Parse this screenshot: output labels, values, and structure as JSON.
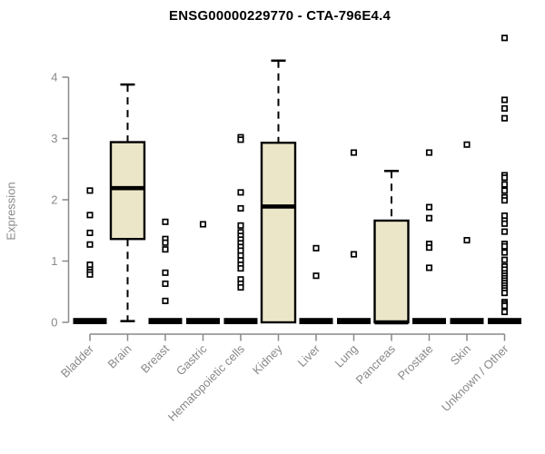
{
  "page": {
    "background": "#ffffff"
  },
  "chart_data": {
    "type": "boxplot",
    "title": "ENSG00000229770 - CTA-796E4.4",
    "ylabel": "Expression",
    "xlabel": "",
    "ylim": [
      0,
      4.7
    ],
    "yticks": [
      0,
      1,
      2,
      3,
      4
    ],
    "grid": false,
    "legend": "none",
    "colors": {
      "box_fill": "#ece6c9",
      "box_stroke": "#000000",
      "median": "#000000",
      "axis": "#898989",
      "outlier_fill": "#ffffff",
      "outlier_stroke": "#000000"
    },
    "categories": [
      "Bladder",
      "Brain",
      "Breast",
      "Gastric",
      "Hematopoietic cells",
      "Kidney",
      "Liver",
      "Lung",
      "Pancreas",
      "Prostate",
      "Skin",
      "Unknown / Other"
    ],
    "boxes": [
      {
        "label": "Bladder",
        "q1": 0,
        "median": 0,
        "q3": 0,
        "whisker_low": 0,
        "whisker_high": 0,
        "outliers": [
          2.15,
          1.75,
          1.46,
          1.27,
          0.94,
          0.86,
          0.82,
          0.78
        ]
      },
      {
        "label": "Brain",
        "q1": 1.36,
        "median": 2.19,
        "q3": 2.94,
        "whisker_low": 0.02,
        "whisker_high": 3.88,
        "outliers": []
      },
      {
        "label": "Breast",
        "q1": 0,
        "median": 0,
        "q3": 0,
        "whisker_low": 0,
        "whisker_high": 0,
        "outliers": [
          1.64,
          1.36,
          1.3,
          1.19,
          0.81,
          0.63,
          0.35
        ]
      },
      {
        "label": "Gastric",
        "q1": 0,
        "median": 0,
        "q3": 0,
        "whisker_low": 0,
        "whisker_high": 0,
        "outliers": [
          1.6
        ]
      },
      {
        "label": "Hematopoietic cells",
        "q1": 0,
        "median": 0,
        "q3": 0,
        "whisker_low": 0,
        "whisker_high": 0,
        "outliers": [
          3.02,
          2.98,
          2.12,
          1.86,
          1.58,
          1.47,
          1.41,
          1.35,
          1.29,
          1.23,
          1.17,
          1.09,
          1.01,
          0.94,
          0.88,
          0.7,
          0.63,
          0.57
        ]
      },
      {
        "label": "Kidney",
        "q1": 0,
        "median": 1.89,
        "q3": 2.93,
        "whisker_low": 0,
        "whisker_high": 4.27,
        "outliers": []
      },
      {
        "label": "Liver",
        "q1": 0,
        "median": 0,
        "q3": 0,
        "whisker_low": 0,
        "whisker_high": 0,
        "outliers": [
          1.21,
          0.76
        ]
      },
      {
        "label": "Lung",
        "q1": 0,
        "median": 0,
        "q3": 0,
        "whisker_low": 0,
        "whisker_high": 0,
        "outliers": [
          2.77,
          1.11
        ]
      },
      {
        "label": "Pancreas",
        "q1": 0,
        "median": 0,
        "q3": 1.66,
        "whisker_low": 0,
        "whisker_high": 2.47,
        "outliers": []
      },
      {
        "label": "Prostate",
        "q1": 0,
        "median": 0,
        "q3": 0,
        "whisker_low": 0,
        "whisker_high": 0,
        "outliers": [
          2.77,
          1.88,
          1.7,
          1.28,
          1.22,
          0.89
        ]
      },
      {
        "label": "Skin",
        "q1": 0,
        "median": 0,
        "q3": 0,
        "whisker_low": 0,
        "whisker_high": 0,
        "outliers": [
          2.9,
          1.34
        ]
      },
      {
        "label": "Unknown / Other",
        "q1": 0,
        "median": 0,
        "q3": 0,
        "whisker_low": 0,
        "whisker_high": 0,
        "outliers": [
          4.64,
          3.63,
          3.49,
          3.33,
          2.4,
          2.36,
          2.25,
          2.15,
          2.04,
          1.99,
          1.74,
          1.66,
          1.61,
          1.48,
          1.28,
          1.24,
          1.14,
          1.02,
          0.91,
          0.86,
          0.8,
          0.76,
          0.72,
          0.68,
          0.64,
          0.6,
          0.56,
          0.52,
          0.48,
          0.33,
          0.3,
          0.27,
          0.17
        ]
      }
    ]
  }
}
